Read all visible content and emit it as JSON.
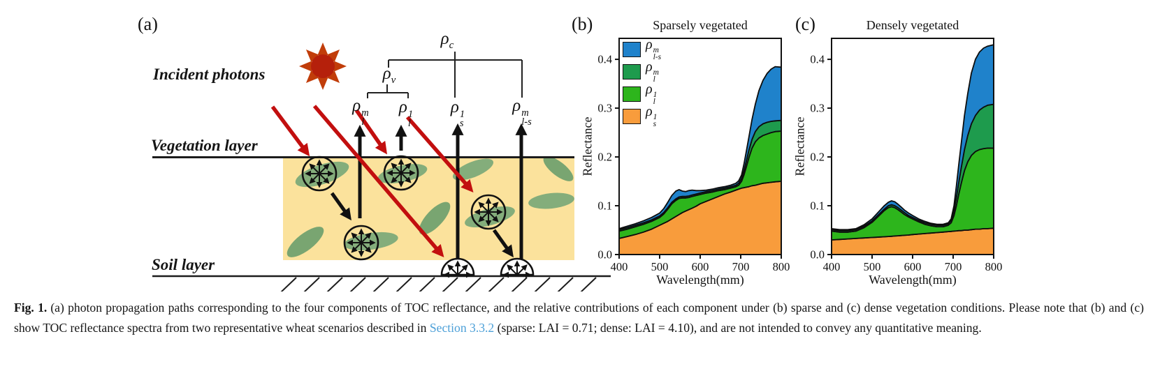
{
  "panel_a": {
    "tag": "(a)",
    "incident_photons_label": "Incident photons",
    "vegetation_layer_label": "Vegetation layer",
    "soil_layer_label": "Soil layer",
    "labels": {
      "rho_c": {
        "base": "ρ",
        "sub": "c"
      },
      "rho_v": {
        "base": "ρ",
        "sub": "v"
      },
      "rho_l_m": {
        "base": "ρ",
        "sup": "m",
        "sub": "l"
      },
      "rho_l_1": {
        "base": "ρ",
        "sup": "1",
        "sub": "l"
      },
      "rho_s_1": {
        "base": "ρ",
        "sup": "1",
        "sub": "s"
      },
      "rho_ls_m": {
        "base": "ρ",
        "sup": "m",
        "sub": "l-s"
      }
    }
  },
  "colors": {
    "sun_disc": "#b5200b",
    "sun_rays": "#c13d0a",
    "vegetation_fill": "#fbe29c",
    "leaf_green": "#84ad7b",
    "leaf_green_dark": "#79a571",
    "incident_arrow_red": "#c20f0f",
    "reflected_arrow_black": "#111111",
    "link_blue": "#4da0d8"
  },
  "chart_data": [
    {
      "type": "area",
      "panel_tag": "(b)",
      "title": "Sparsely vegetated",
      "xlabel": "Wavelength(mm)",
      "ylabel": "Reflectance",
      "xlim": [
        400,
        800
      ],
      "ylim": [
        0,
        0.443
      ],
      "grid": false,
      "legend_position": "upper-left",
      "x_ticks": [
        [
          400,
          "400"
        ],
        [
          500,
          "500"
        ],
        [
          600,
          "600"
        ],
        [
          700,
          "700"
        ],
        [
          800,
          "800"
        ]
      ],
      "y_ticks": [
        [
          0,
          "0.0"
        ],
        [
          0.1,
          "0.1"
        ],
        [
          0.2,
          "0.2"
        ],
        [
          0.3,
          "0.3"
        ],
        [
          0.4,
          "0.4"
        ]
      ],
      "legend": [
        {
          "base": "ρ",
          "sup": "m",
          "sub": "l-s",
          "color": "#1f82cb"
        },
        {
          "base": "ρ",
          "sup": "m",
          "sub": "l",
          "color": "#1e9b4d"
        },
        {
          "base": "ρ",
          "sup": "1",
          "sub": "l",
          "color": "#2db51c"
        },
        {
          "base": "ρ",
          "sup": "1",
          "sub": "s",
          "color": "#f89c3c"
        }
      ],
      "x": [
        400,
        420,
        440,
        460,
        480,
        500,
        510,
        520,
        530,
        540,
        548,
        556,
        564,
        572,
        580,
        590,
        600,
        615,
        630,
        645,
        660,
        675,
        688,
        695,
        702,
        708,
        714,
        720,
        728,
        736,
        745,
        755,
        765,
        775,
        785,
        800
      ],
      "series": [
        {
          "name": "soil-single-rho-s-1",
          "color": "#f89c3c",
          "cumulative": [
            0.033,
            0.037,
            0.041,
            0.046,
            0.052,
            0.06,
            0.064,
            0.068,
            0.073,
            0.078,
            0.082,
            0.086,
            0.089,
            0.092,
            0.095,
            0.099,
            0.104,
            0.109,
            0.114,
            0.119,
            0.124,
            0.128,
            0.132,
            0.134,
            0.136,
            0.137,
            0.138,
            0.139,
            0.141,
            0.142,
            0.144,
            0.146,
            0.147,
            0.148,
            0.149,
            0.15
          ]
        },
        {
          "name": "leaf-single-rho-l-1",
          "color": "#2db51c",
          "cumulative": [
            0.048,
            0.052,
            0.057,
            0.062,
            0.068,
            0.076,
            0.083,
            0.093,
            0.104,
            0.111,
            0.115,
            0.116,
            0.116,
            0.117,
            0.119,
            0.121,
            0.123,
            0.126,
            0.128,
            0.131,
            0.133,
            0.136,
            0.139,
            0.142,
            0.15,
            0.163,
            0.18,
            0.198,
            0.218,
            0.231,
            0.239,
            0.244,
            0.247,
            0.25,
            0.252,
            0.253
          ]
        },
        {
          "name": "leaf-multiple-rho-l-m",
          "color": "#1e9b4d",
          "cumulative": [
            0.051,
            0.055,
            0.06,
            0.065,
            0.071,
            0.079,
            0.086,
            0.096,
            0.107,
            0.114,
            0.118,
            0.119,
            0.119,
            0.12,
            0.122,
            0.124,
            0.126,
            0.129,
            0.131,
            0.134,
            0.136,
            0.139,
            0.142,
            0.146,
            0.156,
            0.172,
            0.192,
            0.213,
            0.236,
            0.252,
            0.262,
            0.268,
            0.271,
            0.273,
            0.274,
            0.275
          ]
        },
        {
          "name": "leaf-soil-multiple-rho-ls-m",
          "color": "#1f82cb",
          "cumulative": [
            0.053,
            0.058,
            0.063,
            0.069,
            0.076,
            0.085,
            0.094,
            0.107,
            0.121,
            0.13,
            0.133,
            0.13,
            0.129,
            0.131,
            0.132,
            0.131,
            0.131,
            0.132,
            0.134,
            0.137,
            0.139,
            0.142,
            0.146,
            0.151,
            0.163,
            0.185,
            0.212,
            0.24,
            0.277,
            0.308,
            0.336,
            0.357,
            0.371,
            0.38,
            0.385,
            0.384
          ]
        }
      ]
    },
    {
      "type": "area",
      "panel_tag": "(c)",
      "title": "Densely vegetated",
      "xlabel": "Wavelength(mm)",
      "ylabel": "Reflectance",
      "xlim": [
        400,
        800
      ],
      "ylim": [
        0,
        0.443
      ],
      "grid": false,
      "legend_position": "none",
      "x_ticks": [
        [
          400,
          "400"
        ],
        [
          500,
          "500"
        ],
        [
          600,
          "600"
        ],
        [
          700,
          "700"
        ],
        [
          800,
          "800"
        ]
      ],
      "y_ticks": [
        [
          0,
          "0.0"
        ],
        [
          0.1,
          "0.1"
        ],
        [
          0.2,
          "0.2"
        ],
        [
          0.3,
          "0.3"
        ],
        [
          0.4,
          "0.4"
        ]
      ],
      "legend": [],
      "x": [
        400,
        420,
        440,
        460,
        480,
        500,
        510,
        520,
        530,
        540,
        548,
        556,
        564,
        572,
        580,
        590,
        600,
        615,
        630,
        645,
        660,
        675,
        688,
        695,
        702,
        708,
        714,
        720,
        728,
        736,
        745,
        755,
        765,
        775,
        785,
        800
      ],
      "series": [
        {
          "name": "soil-single-rho-s-1",
          "color": "#f89c3c",
          "cumulative": [
            0.03,
            0.031,
            0.032,
            0.033,
            0.034,
            0.035,
            0.0355,
            0.036,
            0.0365,
            0.037,
            0.0375,
            0.038,
            0.0385,
            0.039,
            0.0395,
            0.04,
            0.041,
            0.042,
            0.043,
            0.044,
            0.045,
            0.046,
            0.047,
            0.0475,
            0.048,
            0.0485,
            0.049,
            0.049,
            0.05,
            0.05,
            0.051,
            0.052,
            0.052,
            0.053,
            0.053,
            0.054
          ]
        },
        {
          "name": "leaf-single-rho-l-1",
          "color": "#2db51c",
          "cumulative": [
            0.048,
            0.046,
            0.046,
            0.048,
            0.055,
            0.066,
            0.074,
            0.082,
            0.09,
            0.096,
            0.098,
            0.096,
            0.092,
            0.087,
            0.082,
            0.077,
            0.073,
            0.067,
            0.062,
            0.059,
            0.057,
            0.057,
            0.06,
            0.065,
            0.08,
            0.1,
            0.124,
            0.146,
            0.172,
            0.19,
            0.203,
            0.211,
            0.215,
            0.217,
            0.218,
            0.218
          ]
        },
        {
          "name": "leaf-multiple-rho-l-m",
          "color": "#1e9b4d",
          "cumulative": [
            0.051,
            0.049,
            0.049,
            0.051,
            0.058,
            0.069,
            0.077,
            0.085,
            0.093,
            0.1,
            0.102,
            0.1,
            0.096,
            0.091,
            0.086,
            0.08,
            0.076,
            0.07,
            0.065,
            0.062,
            0.06,
            0.06,
            0.063,
            0.07,
            0.09,
            0.117,
            0.148,
            0.178,
            0.215,
            0.244,
            0.268,
            0.285,
            0.296,
            0.302,
            0.306,
            0.308
          ]
        },
        {
          "name": "leaf-soil-multiple-rho-ls-m",
          "color": "#1f82cb",
          "cumulative": [
            0.053,
            0.051,
            0.051,
            0.053,
            0.061,
            0.073,
            0.082,
            0.091,
            0.1,
            0.107,
            0.11,
            0.108,
            0.103,
            0.097,
            0.091,
            0.085,
            0.08,
            0.073,
            0.068,
            0.064,
            0.062,
            0.062,
            0.065,
            0.073,
            0.1,
            0.14,
            0.185,
            0.228,
            0.285,
            0.33,
            0.372,
            0.4,
            0.415,
            0.423,
            0.427,
            0.43
          ]
        }
      ]
    }
  ],
  "caption": {
    "label": "Fig. 1.",
    "before_link": "(a) photon propagation paths corresponding to the four components of TOC reflectance, and the relative contributions of each component under (b) sparse and (c) dense vegetation conditions. Please note that (b) and (c) show TOC reflectance spectra from two representative wheat scenarios described in ",
    "link": "Section 3.3.2",
    "after_link": " (sparse: LAI = 0.71; dense: LAI = 4.10), and are not intended to convey any quantitative meaning."
  }
}
